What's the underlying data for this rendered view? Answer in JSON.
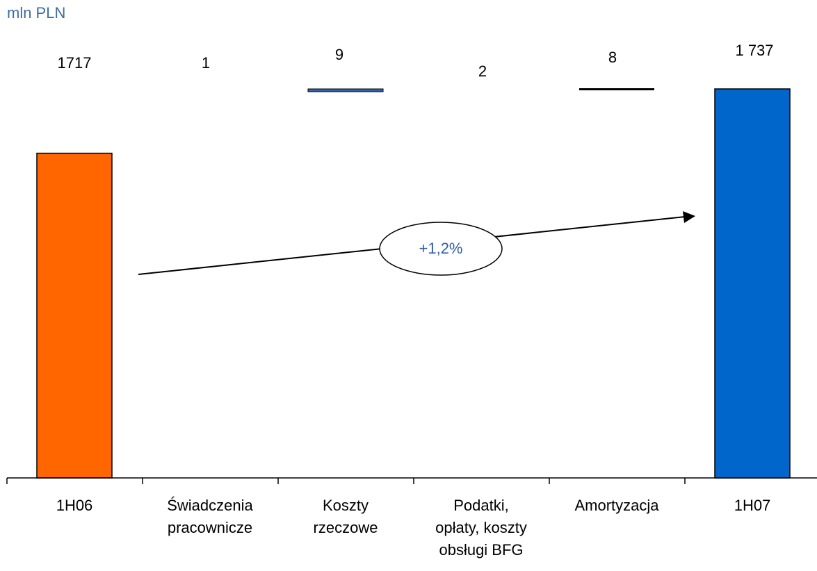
{
  "unit_label": "mln PLN",
  "growth_label": "+1,2%",
  "chart_data": {
    "type": "bar",
    "subtype": "waterfall",
    "categories": [
      "1H06",
      "Świadczenia\npracownicze",
      "Koszty\nrzeczowe",
      "Podatki,\nopłaty, koszty\nobsługi BFG",
      "Amortyzacja",
      "1H07"
    ],
    "values": [
      1717,
      1,
      9,
      2,
      8,
      1737
    ],
    "value_labels": [
      "1717",
      "1",
      "9",
      "2",
      "8",
      "1 737"
    ],
    "kinds": [
      "total",
      "delta",
      "delta",
      "delta",
      "delta",
      "total"
    ],
    "colors": {
      "start_total": "#ff6600",
      "end_total": "#0066cc",
      "costs_delta": "#3366aa",
      "amortization_delta": "#000000",
      "axis": "#000000"
    },
    "ylim": [
      0,
      1737
    ],
    "grid": false,
    "legend": "none",
    "title": "",
    "xlabel": "",
    "ylabel": ""
  }
}
